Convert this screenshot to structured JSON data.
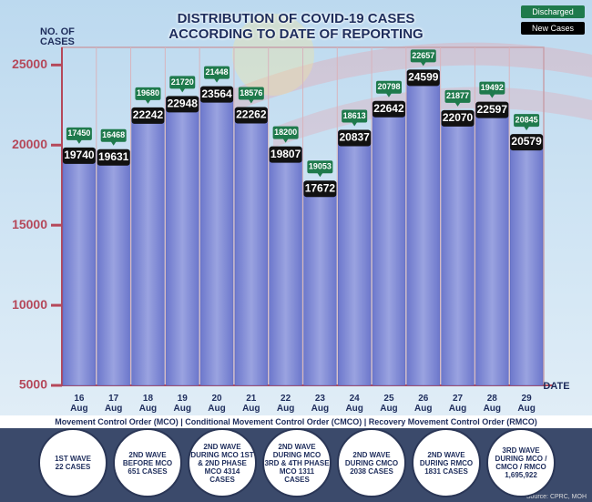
{
  "chart_data": {
    "type": "bar",
    "title": [
      "DISTRIBUTION OF COVID-19 CASES",
      "ACCORDING TO DATE OF REPORTING"
    ],
    "y_label": "NO. OF CASES",
    "x_label": "DATE",
    "categories": [
      "16 Aug",
      "17 Aug",
      "18 Aug",
      "19 Aug",
      "20 Aug",
      "21 Aug",
      "22 Aug",
      "23 Aug",
      "24 Aug",
      "25 Aug",
      "26 Aug",
      "27 Aug",
      "28 Aug",
      "29 Aug"
    ],
    "series": [
      {
        "name": "New Cases",
        "color": "#7f8ad6",
        "values": [
          19740,
          19631,
          22242,
          22948,
          23564,
          22262,
          19807,
          17672,
          20837,
          22642,
          24599,
          22070,
          22597,
          20579
        ]
      },
      {
        "name": "Discharged",
        "color": "#1f7a4c",
        "values": [
          17450,
          16468,
          19680,
          21720,
          21448,
          18576,
          18200,
          19053,
          18613,
          20798,
          22657,
          21877,
          19492,
          20845
        ]
      }
    ],
    "ylim": [
      5000,
      26100
    ],
    "yticks": [
      5000,
      10000,
      15000,
      20000,
      25000
    ],
    "grid": true
  },
  "footer": "Movement Control Order (MCO) | Conditional Movement Control Order (CMCO) | Recovery Movement Control Order (RMCO)",
  "waves": [
    [
      "1ST WAVE",
      "22 CASES"
    ],
    [
      "2ND WAVE",
      "BEFORE MCO",
      "651 CASES"
    ],
    [
      "2ND WAVE",
      "DURING MCO 1ST",
      "& 2ND PHASE",
      "MCO 4314",
      "CASES"
    ],
    [
      "2ND WAVE",
      "DURING MCO",
      "3RD & 4TH PHASE",
      "MCO 1311",
      "CASES"
    ],
    [
      "2ND WAVE",
      "DURING CMCO",
      "2038 CASES"
    ],
    [
      "2ND WAVE",
      "DURING RMCO",
      "1831 CASES"
    ],
    [
      "3RD WAVE",
      "DURING MCO /",
      "CMCO / RMCO",
      "1,695,922"
    ]
  ],
  "source": "Source: CPRC, MOH"
}
